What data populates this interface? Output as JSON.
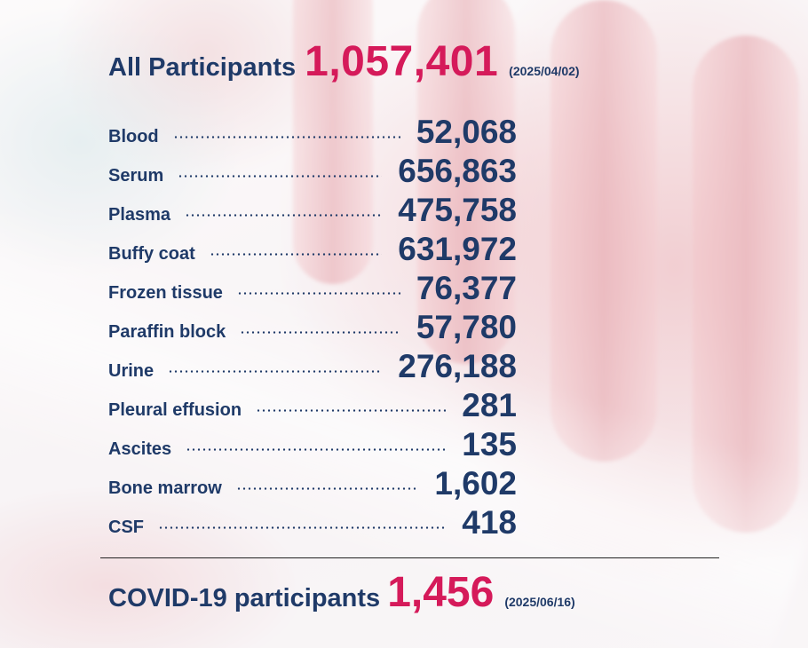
{
  "summary": {
    "label": "All Participants",
    "total": "1,057,401",
    "date": "(2025/04/02)"
  },
  "samples": [
    {
      "name": "Blood",
      "value": "52,068"
    },
    {
      "name": "Serum",
      "value": "656,863"
    },
    {
      "name": "Plasma",
      "value": "475,758"
    },
    {
      "name": "Buffy coat",
      "value": "631,972"
    },
    {
      "name": "Frozen tissue",
      "value": "76,377"
    },
    {
      "name": "Paraffin block",
      "value": "57,780"
    },
    {
      "name": "Urine",
      "value": "276,188"
    },
    {
      "name": "Pleural effusion",
      "value": "281"
    },
    {
      "name": "Ascites",
      "value": "135"
    },
    {
      "name": "Bone marrow",
      "value": "1,602"
    },
    {
      "name": "CSF",
      "value": "418"
    }
  ],
  "covid": {
    "label": "COVID-19 participants",
    "total": "1,456",
    "date": "(2025/06/16)"
  },
  "colors": {
    "navy": "#1f3a68",
    "accent": "#d51a5a"
  }
}
